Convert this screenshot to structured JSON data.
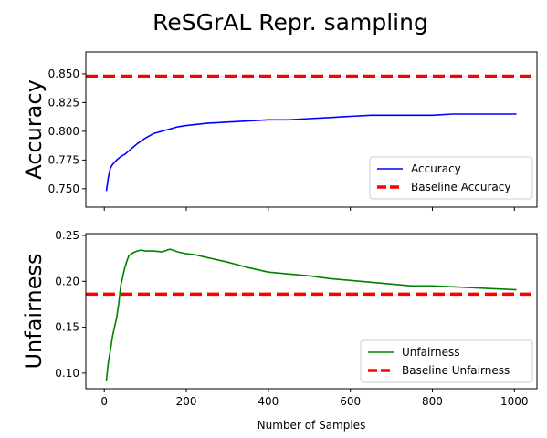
{
  "figure": {
    "title": "ReSGrAL Repr. sampling"
  },
  "chart_data": [
    {
      "type": "line",
      "title": "",
      "xlabel": "",
      "ylabel": "Accuracy",
      "xlim": [
        -45,
        1055
      ],
      "ylim": [
        0.734,
        0.869
      ],
      "xticks": [
        0,
        200,
        400,
        600,
        800,
        1000
      ],
      "xtick_labels_shown": false,
      "yticks": [
        0.75,
        0.775,
        0.8,
        0.825,
        0.85
      ],
      "ytick_labels": [
        "0.750",
        "0.775",
        "0.800",
        "0.825",
        "0.850"
      ],
      "grid": false,
      "legend_position": "lower-right",
      "series": [
        {
          "name": "Accuracy",
          "color": "#0000ff",
          "style": "solid",
          "x": [
            5,
            10,
            15,
            20,
            25,
            30,
            40,
            50,
            60,
            70,
            80,
            100,
            120,
            150,
            180,
            200,
            250,
            300,
            350,
            400,
            450,
            500,
            550,
            600,
            650,
            700,
            750,
            800,
            850,
            900,
            950,
            1000,
            1005
          ],
          "y": [
            0.748,
            0.76,
            0.768,
            0.771,
            0.773,
            0.775,
            0.778,
            0.78,
            0.783,
            0.786,
            0.789,
            0.794,
            0.798,
            0.801,
            0.804,
            0.805,
            0.807,
            0.808,
            0.809,
            0.81,
            0.81,
            0.811,
            0.812,
            0.813,
            0.814,
            0.814,
            0.814,
            0.814,
            0.815,
            0.815,
            0.815,
            0.815,
            0.815
          ]
        },
        {
          "name": "Baseline Accuracy",
          "color": "#ff0000",
          "style": "dashed",
          "hline": 0.848
        }
      ]
    },
    {
      "type": "line",
      "title": "",
      "xlabel": "Number of Samples",
      "ylabel": "Unfairness",
      "xlim": [
        -45,
        1055
      ],
      "ylim": [
        0.083,
        0.252
      ],
      "xticks": [
        0,
        200,
        400,
        600,
        800,
        1000
      ],
      "xtick_labels": [
        "0",
        "200",
        "400",
        "600",
        "800",
        "1000"
      ],
      "yticks": [
        0.1,
        0.15,
        0.2,
        0.25
      ],
      "ytick_labels": [
        "0.10",
        "0.15",
        "0.20",
        "0.25"
      ],
      "grid": false,
      "legend_position": "lower-right",
      "series": [
        {
          "name": "Unfairness",
          "color": "#008000",
          "style": "solid",
          "x": [
            5,
            10,
            15,
            20,
            25,
            30,
            35,
            40,
            45,
            50,
            55,
            60,
            70,
            80,
            90,
            100,
            120,
            140,
            160,
            180,
            200,
            220,
            250,
            280,
            300,
            350,
            400,
            450,
            500,
            550,
            600,
            650,
            700,
            750,
            800,
            850,
            900,
            950,
            1000,
            1005
          ],
          "y": [
            0.092,
            0.112,
            0.125,
            0.14,
            0.15,
            0.16,
            0.175,
            0.195,
            0.205,
            0.215,
            0.222,
            0.228,
            0.231,
            0.233,
            0.234,
            0.233,
            0.233,
            0.232,
            0.235,
            0.232,
            0.23,
            0.229,
            0.226,
            0.223,
            0.221,
            0.215,
            0.21,
            0.208,
            0.206,
            0.203,
            0.201,
            0.199,
            0.197,
            0.195,
            0.195,
            0.194,
            0.193,
            0.192,
            0.191,
            0.191
          ]
        },
        {
          "name": "Baseline Unfairness",
          "color": "#ff0000",
          "style": "dashed",
          "hline": 0.186
        }
      ]
    }
  ]
}
